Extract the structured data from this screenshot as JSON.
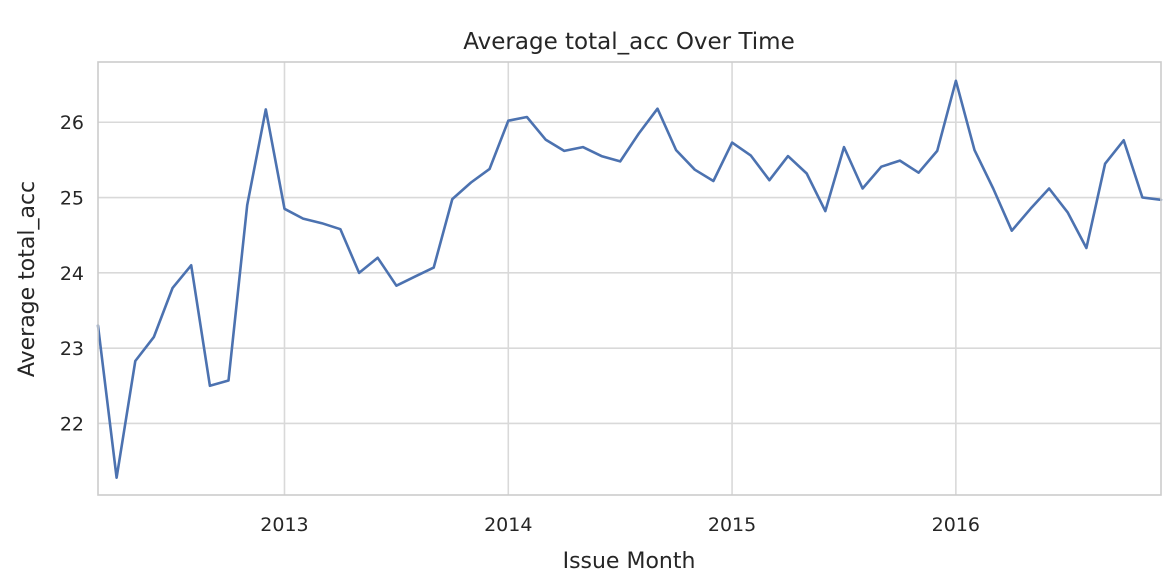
{
  "chart_data": {
    "type": "line",
    "title": "Average total_acc Over Time",
    "xlabel": "Issue Month",
    "ylabel": "Average total_acc",
    "x_ticks": [
      "2013",
      "2014",
      "2015",
      "2016"
    ],
    "y_ticks": [
      22,
      23,
      24,
      25,
      26
    ],
    "xlim": [
      "2012-03",
      "2016-12"
    ],
    "ylim": [
      21.05,
      26.8
    ],
    "grid": true,
    "series": [
      {
        "color": "#4c72b0",
        "x": [
          "2012-03",
          "2012-04",
          "2012-05",
          "2012-06",
          "2012-07",
          "2012-08",
          "2012-09",
          "2012-10",
          "2012-11",
          "2012-12",
          "2013-01",
          "2013-02",
          "2013-03",
          "2013-04",
          "2013-05",
          "2013-06",
          "2013-07",
          "2013-08",
          "2013-09",
          "2013-10",
          "2013-11",
          "2013-12",
          "2014-01",
          "2014-02",
          "2014-03",
          "2014-04",
          "2014-05",
          "2014-06",
          "2014-07",
          "2014-08",
          "2014-09",
          "2014-10",
          "2014-11",
          "2014-12",
          "2015-01",
          "2015-02",
          "2015-03",
          "2015-04",
          "2015-05",
          "2015-06",
          "2015-07",
          "2015-08",
          "2015-09",
          "2015-10",
          "2015-11",
          "2015-12",
          "2016-01",
          "2016-02",
          "2016-03",
          "2016-04",
          "2016-05",
          "2016-06",
          "2016-07",
          "2016-08",
          "2016-09",
          "2016-10",
          "2016-11",
          "2016-12"
        ],
        "values": [
          23.3,
          21.28,
          22.83,
          23.15,
          23.8,
          24.1,
          22.5,
          22.57,
          24.9,
          26.17,
          24.85,
          24.72,
          24.66,
          24.58,
          24.0,
          24.2,
          23.83,
          23.95,
          24.07,
          24.98,
          25.2,
          25.38,
          26.02,
          26.07,
          25.77,
          25.62,
          25.67,
          25.55,
          25.48,
          25.85,
          26.18,
          25.63,
          25.37,
          25.22,
          25.73,
          25.56,
          25.23,
          25.55,
          25.32,
          24.82,
          25.67,
          25.12,
          25.41,
          25.49,
          25.33,
          25.62,
          26.55,
          25.63,
          25.12,
          24.56,
          24.85,
          25.12,
          24.8,
          24.33,
          25.45,
          25.76,
          25.0,
          24.97
        ]
      }
    ]
  }
}
